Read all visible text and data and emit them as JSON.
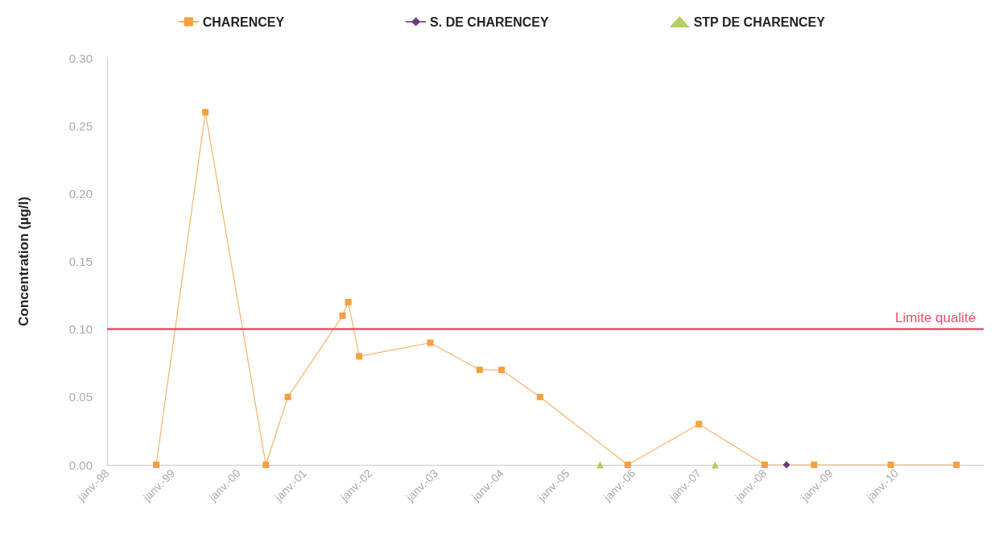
{
  "chart_data": {
    "type": "line",
    "ylabel": "Concentration (µg/l)",
    "series": [
      {
        "name": "CHARENCEY",
        "color": "#f5a040",
        "marker": "square",
        "x": [
          "1998-10",
          "1999-07",
          "2000-06",
          "2000-10",
          "2001-08",
          "2001-09",
          "2001-11",
          "2002-12",
          "2003-09",
          "2004-01",
          "2004-08",
          "2005-12",
          "2007-01",
          "2008-01",
          "2008-10",
          "2009-12",
          "2010-12"
        ],
        "values": [
          0,
          0.26,
          0,
          0.05,
          0.11,
          0.12,
          0.08,
          0.09,
          0.07,
          0.07,
          0.05,
          0,
          0.03,
          0,
          0,
          0,
          0
        ]
      },
      {
        "name": "S. DE CHARENCEY",
        "color": "#6b3a7a",
        "marker": "diamond",
        "x": [
          "2008-05"
        ],
        "values": [
          0
        ]
      },
      {
        "name": "STP DE CHARENCEY",
        "type": "scatter",
        "color": "#9cc43a",
        "marker": "triangle",
        "x": [
          "2005-07",
          "2007-04"
        ],
        "values": [
          0,
          0
        ]
      }
    ],
    "xlim": [
      "1998-01",
      "2011-05"
    ],
    "xticks": [
      {
        "value": "1998-01",
        "label": "janv.-98"
      },
      {
        "value": "1999-01",
        "label": "janv.-99"
      },
      {
        "value": "2000-01",
        "label": "janv.-00"
      },
      {
        "value": "2001-01",
        "label": "janv.-01"
      },
      {
        "value": "2002-01",
        "label": "janv.-02"
      },
      {
        "value": "2003-01",
        "label": "janv.-03"
      },
      {
        "value": "2004-01",
        "label": "janv.-04"
      },
      {
        "value": "2005-01",
        "label": "janv.-05"
      },
      {
        "value": "2006-01",
        "label": "janv.-06"
      },
      {
        "value": "2007-01",
        "label": "janv.-07"
      },
      {
        "value": "2008-01",
        "label": "janv.-08"
      },
      {
        "value": "2009-01",
        "label": "janv.-09"
      },
      {
        "value": "2010-01",
        "label": "janv.-10"
      }
    ],
    "ylim": [
      0,
      0.3
    ],
    "yticks": [
      {
        "value": 0,
        "label": "0.00"
      },
      {
        "value": 0.05,
        "label": "0.05"
      },
      {
        "value": 0.1,
        "label": "0.10"
      },
      {
        "value": 0.15,
        "label": "0.15"
      },
      {
        "value": 0.2,
        "label": "0.20"
      },
      {
        "value": 0.25,
        "label": "0.25"
      },
      {
        "value": 0.3,
        "label": "0.30"
      }
    ],
    "ref_lines": [
      {
        "axis": "y",
        "value": 0.1,
        "label": "Limite qualité",
        "color": "#e8506a"
      }
    ],
    "grid": false,
    "legend": "top",
    "line_style": "solid"
  }
}
